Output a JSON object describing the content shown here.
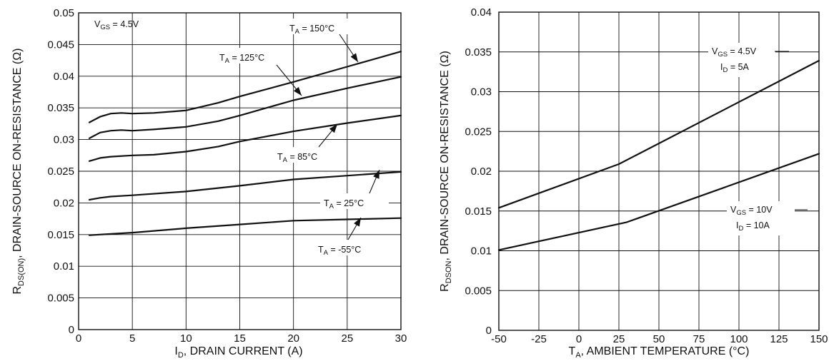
{
  "chart_data": [
    {
      "type": "line",
      "xlabel": {
        "main": "I",
        "sub": "D",
        "rest": ", DRAIN CURRENT (A)"
      },
      "ylabel": {
        "main": "R",
        "sub": "DS(ON)",
        "rest": ",  DRAIN-SOURCE ON-RESISTANCE (Ω)"
      },
      "xlim": [
        0,
        30
      ],
      "ylim": [
        0,
        0.05
      ],
      "x_ticks": [
        "0",
        "5",
        "10",
        "15",
        "20",
        "25",
        "30"
      ],
      "y_ticks": [
        "0",
        "0.005",
        "0.01",
        "0.015",
        "0.02",
        "0.025",
        "0.03",
        "0.035",
        "0.04",
        "0.045",
        "0.05"
      ],
      "grid": true,
      "condition": {
        "main": "V",
        "sub": "GS",
        "rest": " = 4.5V"
      },
      "series": [
        {
          "name": {
            "main": "T",
            "sub": "A",
            "rest": " = 150°C"
          },
          "points": [
            [
              1,
              0.0327
            ],
            [
              2,
              0.0336
            ],
            [
              3,
              0.0341
            ],
            [
              4,
              0.0342
            ],
            [
              5,
              0.0341
            ],
            [
              7,
              0.0342
            ],
            [
              10,
              0.0346
            ],
            [
              13,
              0.0358
            ],
            [
              15,
              0.0368
            ],
            [
              20,
              0.0391
            ],
            [
              25,
              0.0415
            ],
            [
              30,
              0.0439
            ]
          ]
        },
        {
          "name": {
            "main": "T",
            "sub": "A",
            "rest": " = 125°C"
          },
          "points": [
            [
              1,
              0.0302
            ],
            [
              2,
              0.0311
            ],
            [
              3,
              0.0314
            ],
            [
              4,
              0.0315
            ],
            [
              5,
              0.0314
            ],
            [
              7,
              0.0316
            ],
            [
              10,
              0.032
            ],
            [
              13,
              0.0329
            ],
            [
              15,
              0.0338
            ],
            [
              20,
              0.0362
            ],
            [
              25,
              0.0381
            ],
            [
              30,
              0.0399
            ]
          ]
        },
        {
          "name": {
            "main": "T",
            "sub": "A",
            "rest": " = 85°C"
          },
          "points": [
            [
              1,
              0.0266
            ],
            [
              2,
              0.0271
            ],
            [
              3,
              0.0273
            ],
            [
              5,
              0.0275
            ],
            [
              7,
              0.0276
            ],
            [
              10,
              0.0281
            ],
            [
              13,
              0.0289
            ],
            [
              15,
              0.0297
            ],
            [
              20,
              0.0313
            ],
            [
              25,
              0.0326
            ],
            [
              30,
              0.0338
            ]
          ]
        },
        {
          "name": {
            "main": "T",
            "sub": "A",
            "rest": " = 25°C"
          },
          "points": [
            [
              1,
              0.0205
            ],
            [
              2,
              0.0208
            ],
            [
              3,
              0.021
            ],
            [
              5,
              0.0212
            ],
            [
              10,
              0.0218
            ],
            [
              15,
              0.0227
            ],
            [
              20,
              0.0237
            ],
            [
              25,
              0.0243
            ],
            [
              30,
              0.0249
            ]
          ]
        },
        {
          "name": {
            "main": "T",
            "sub": "A",
            "rest": " = -55°C"
          },
          "points": [
            [
              1,
              0.0149
            ],
            [
              3,
              0.0151
            ],
            [
              5,
              0.0153
            ],
            [
              10,
              0.016
            ],
            [
              15,
              0.0166
            ],
            [
              20,
              0.0172
            ],
            [
              25,
              0.0174
            ],
            [
              30,
              0.0176
            ]
          ]
        }
      ]
    },
    {
      "type": "line",
      "xlabel": {
        "main": "T",
        "sub": "A",
        "rest": ", AMBIENT TEMPERATURE (°C)"
      },
      "ylabel": {
        "main": "R",
        "sub": "DSON",
        "rest": ", DRAIN-SOURCE ON-RESISTANCE (Ω)"
      },
      "xlim": [
        -50,
        150
      ],
      "ylim": [
        0,
        0.04
      ],
      "x_ticks": [
        "-50",
        "-25",
        "0",
        "25",
        "50",
        "75",
        "100",
        "125",
        "150"
      ],
      "y_ticks": [
        "0",
        "0.005",
        "0.01",
        "0.015",
        "0.02",
        "0.025",
        "0.03",
        "0.035",
        "0.04"
      ],
      "grid": true,
      "series": [
        {
          "name": [
            {
              "main": "V",
              "sub": "GS",
              "rest": " = 4.5V"
            },
            {
              "main": "I",
              "sub": "D",
              "rest": " = 5A"
            }
          ],
          "points": [
            [
              -50,
              0.0154
            ],
            [
              25,
              0.0209
            ],
            [
              150,
              0.0339
            ]
          ]
        },
        {
          "name": [
            {
              "main": "V",
              "sub": "GS",
              "rest": " = 10V"
            },
            {
              "main": "I",
              "sub": "D",
              "rest": " = 10A"
            }
          ],
          "points": [
            [
              -50,
              0.0101
            ],
            [
              30,
              0.0136
            ],
            [
              150,
              0.0222
            ]
          ]
        }
      ]
    }
  ]
}
